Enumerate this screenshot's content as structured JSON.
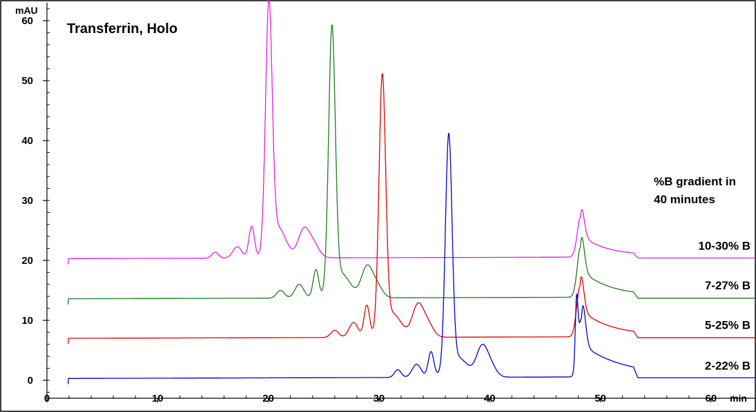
{
  "chart_data": {
    "type": "line",
    "title": "Transferrin, Holo",
    "xlabel": "min",
    "ylabel": "mAU",
    "xlim": [
      0,
      64
    ],
    "ylim": [
      -3,
      63
    ],
    "x_ticks": [
      0,
      10,
      20,
      30,
      40,
      50,
      60
    ],
    "y_ticks": [
      0,
      10,
      20,
      30,
      40,
      50,
      60
    ],
    "grid": false,
    "annotation": [
      "%B gradient in",
      "40 minutes"
    ],
    "series": [
      {
        "name": "10-30% B",
        "color": "#e020e0",
        "baseline": 20.3,
        "end_baseline": 20.5,
        "injection_x": 1.9,
        "step": {
          "x": 48.0,
          "rise": 0.3
        },
        "drop": {
          "x": 53.0,
          "to": 20.4
        },
        "peaks": [
          {
            "x": 15.2,
            "h": 1.0,
            "w": 0.3
          },
          {
            "x": 17.2,
            "h": 1.9,
            "w": 0.4
          },
          {
            "x": 18.5,
            "h": 5.3,
            "w": 0.25
          },
          {
            "x": 20.05,
            "h": 40.8,
            "w": 0.3
          },
          {
            "x": 20.9,
            "h": 5.0,
            "w": 0.7
          },
          {
            "x": 23.2,
            "h": 4.6,
            "w": 0.5
          },
          {
            "x": 24.1,
            "h": 2.2,
            "w": 0.5
          },
          {
            "x": 48.2,
            "h": 6.3,
            "w": 0.3,
            "tail": 2.2
          }
        ]
      },
      {
        "name": "7-27% B",
        "color": "#1e7a1e",
        "baseline": 13.6,
        "end_baseline": 13.9,
        "injection_x": 1.9,
        "step": {
          "x": 48.0,
          "rise": 0.3
        },
        "drop": {
          "x": 53.0,
          "to": 13.7
        },
        "peaks": [
          {
            "x": 21.1,
            "h": 1.3,
            "w": 0.35
          },
          {
            "x": 22.8,
            "h": 2.3,
            "w": 0.4
          },
          {
            "x": 24.3,
            "h": 4.7,
            "w": 0.25
          },
          {
            "x": 25.75,
            "h": 43.3,
            "w": 0.3
          },
          {
            "x": 26.6,
            "h": 4.0,
            "w": 0.8
          },
          {
            "x": 28.9,
            "h": 5.0,
            "w": 0.5
          },
          {
            "x": 29.8,
            "h": 2.0,
            "w": 0.5
          },
          {
            "x": 48.2,
            "h": 8.0,
            "w": 0.3,
            "tail": 2.4
          }
        ]
      },
      {
        "name": "5-25% B",
        "color": "#e00000",
        "baseline": 7.0,
        "end_baseline": 7.3,
        "injection_x": 1.9,
        "step": {
          "x": 48.0,
          "rise": 0.3
        },
        "drop": {
          "x": 53.0,
          "to": 7.1
        },
        "peaks": [
          {
            "x": 26.0,
            "h": 1.2,
            "w": 0.35
          },
          {
            "x": 27.7,
            "h": 2.5,
            "w": 0.4
          },
          {
            "x": 28.9,
            "h": 5.3,
            "w": 0.25
          },
          {
            "x": 30.3,
            "h": 41.9,
            "w": 0.3
          },
          {
            "x": 31.2,
            "h": 4.0,
            "w": 0.8
          },
          {
            "x": 33.5,
            "h": 5.2,
            "w": 0.5
          },
          {
            "x": 34.4,
            "h": 2.2,
            "w": 0.5
          },
          {
            "x": 48.15,
            "h": 8.0,
            "w": 0.3,
            "tail": 2.5
          }
        ]
      },
      {
        "name": "2-22% B",
        "color": "#0000cc",
        "baseline": 0.3,
        "end_baseline": 0.5,
        "injection_x": 1.9,
        "step": {
          "x": 47.8,
          "rise": 0.3
        },
        "drop": {
          "x": 53.0,
          "to": 0.4
        },
        "peaks": [
          {
            "x": 31.7,
            "h": 1.3,
            "w": 0.3
          },
          {
            "x": 33.4,
            "h": 2.2,
            "w": 0.4
          },
          {
            "x": 34.7,
            "h": 4.2,
            "w": 0.25
          },
          {
            "x": 36.3,
            "h": 38.5,
            "w": 0.3
          },
          {
            "x": 37.1,
            "h": 3.3,
            "w": 0.9
          },
          {
            "x": 39.3,
            "h": 4.8,
            "w": 0.5
          },
          {
            "x": 40.1,
            "h": 1.8,
            "w": 0.5
          },
          {
            "x": 47.85,
            "h": 10.3,
            "w": 0.12
          },
          {
            "x": 48.3,
            "h": 9.5,
            "w": 0.3,
            "tail": 3.5
          }
        ]
      }
    ]
  }
}
